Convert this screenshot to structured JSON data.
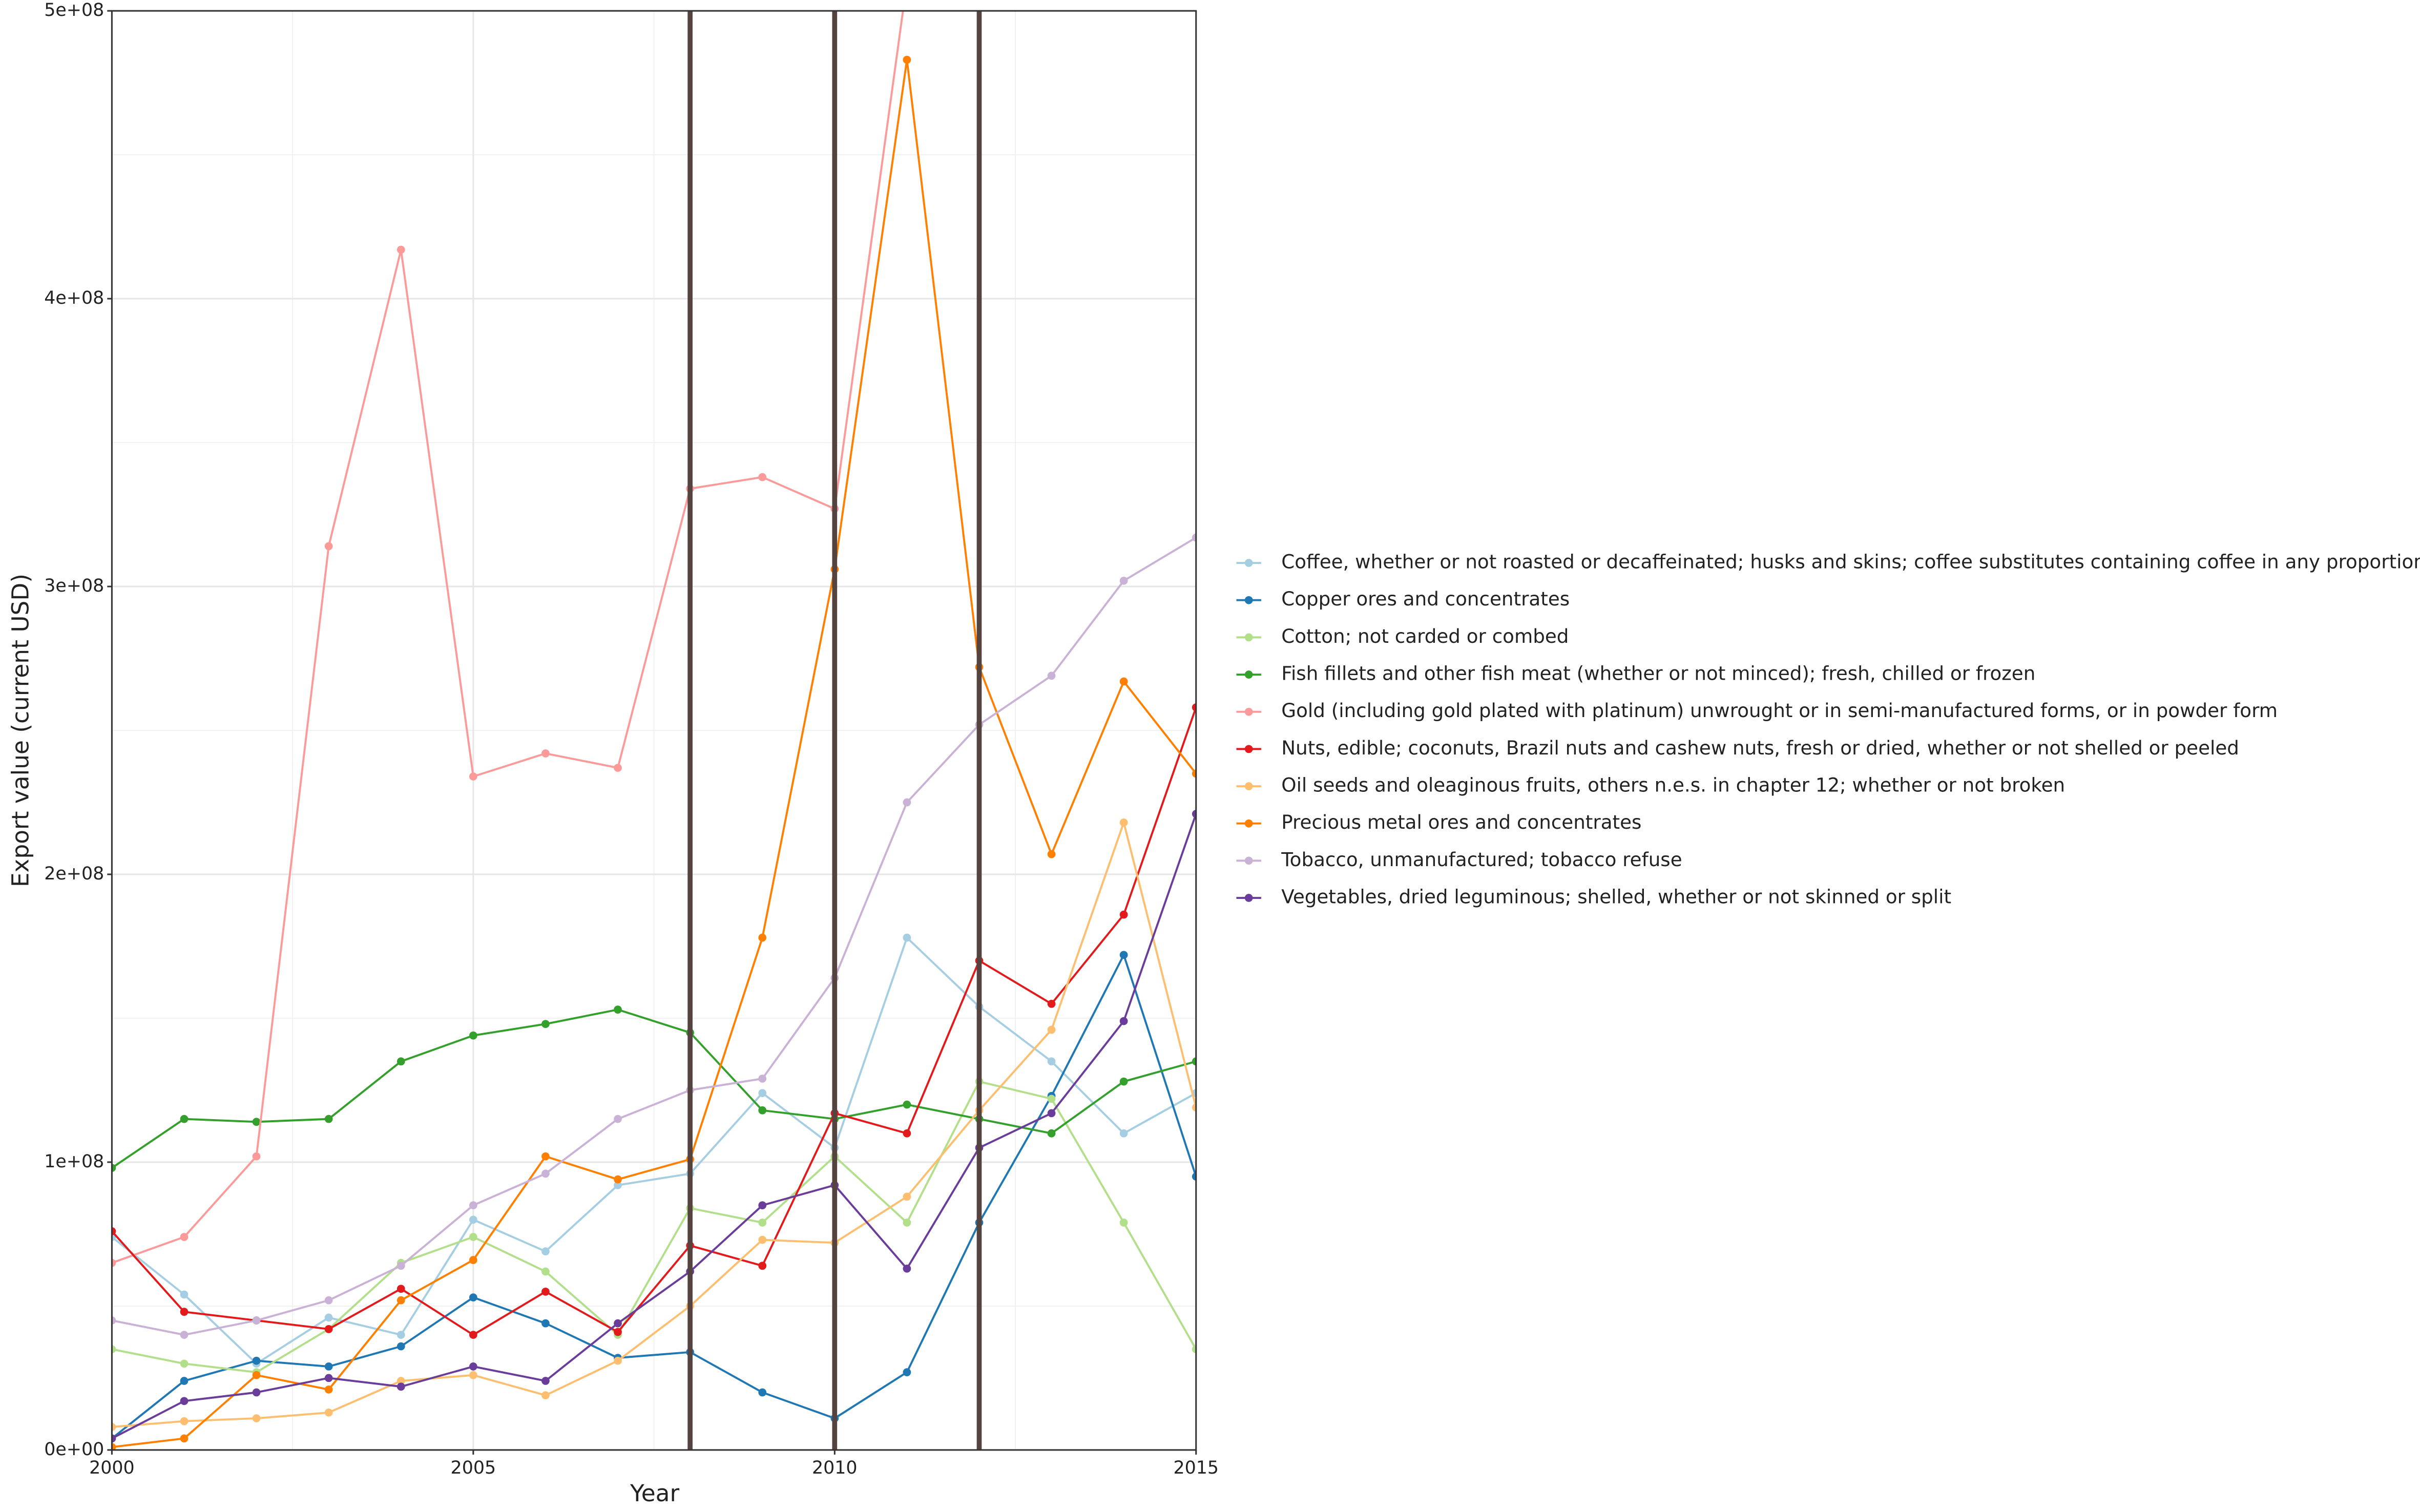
{
  "chart_data": {
    "type": "line",
    "x_label": "Year",
    "y_label": "Export value (current USD)",
    "x": [
      2000,
      2001,
      2002,
      2003,
      2004,
      2005,
      2006,
      2007,
      2008,
      2009,
      2010,
      2011,
      2012,
      2013,
      2014,
      2015
    ],
    "xlim": [
      2000,
      2015
    ],
    "xticks": [
      2000,
      2005,
      2010,
      2015
    ],
    "ylim": [
      0,
      500000000
    ],
    "yticks": [
      {
        "value": 0,
        "label": "0e+00"
      },
      {
        "value": 100000000,
        "label": "1e+08"
      },
      {
        "value": 200000000,
        "label": "2e+08"
      },
      {
        "value": 300000000,
        "label": "3e+08"
      },
      {
        "value": 400000000,
        "label": "4e+08"
      },
      {
        "value": 500000000,
        "label": "5e+08"
      }
    ],
    "grid": true,
    "legend": "right",
    "vlines": [
      2008,
      2010,
      2012
    ],
    "vline_color": "#54433f",
    "series": [
      {
        "name": "Coffee, whether or not roasted or decaffeinated; husks and skins; coffee substitutes containing coffee in any proportion",
        "color": "#a6cee3",
        "values": [
          74000000,
          54000000,
          30000000,
          46000000,
          40000000,
          80000000,
          69000000,
          92000000,
          96000000,
          124000000,
          105000000,
          178000000,
          154000000,
          135000000,
          110000000,
          124000000
        ]
      },
      {
        "name": "Copper ores and concentrates",
        "color": "#1f78b4",
        "values": [
          4000000,
          24000000,
          31000000,
          29000000,
          36000000,
          53000000,
          44000000,
          32000000,
          34000000,
          20000000,
          11000000,
          27000000,
          79000000,
          123000000,
          172000000,
          95000000
        ]
      },
      {
        "name": "Cotton; not carded or combed",
        "color": "#b2df8a",
        "values": [
          35000000,
          30000000,
          27000000,
          42000000,
          65000000,
          74000000,
          62000000,
          40000000,
          84000000,
          79000000,
          102000000,
          79000000,
          128000000,
          122000000,
          79000000,
          35000000
        ]
      },
      {
        "name": "Fish fillets and other fish meat (whether or not minced); fresh, chilled or frozen",
        "color": "#33a02c",
        "values": [
          98000000,
          115000000,
          114000000,
          115000000,
          135000000,
          144000000,
          148000000,
          153000000,
          145000000,
          118000000,
          115000000,
          120000000,
          115000000,
          110000000,
          128000000,
          135000000
        ]
      },
      {
        "name": "Gold (including gold plated with platinum) unwrought or in semi-manufactured forms, or in powder form",
        "color": "#fb9a99",
        "values": [
          65000000,
          74000000,
          102000000,
          314000000,
          417000000,
          234000000,
          242000000,
          237000000,
          334000000,
          338000000,
          327000000,
          510000000,
          null,
          null,
          null,
          null
        ]
      },
      {
        "name": "Nuts, edible; coconuts, Brazil nuts and cashew nuts, fresh or dried, whether or not shelled or peeled",
        "color": "#e31a1c",
        "values": [
          76000000,
          48000000,
          45000000,
          42000000,
          56000000,
          40000000,
          55000000,
          41000000,
          71000000,
          64000000,
          117000000,
          110000000,
          170000000,
          155000000,
          186000000,
          258000000
        ]
      },
      {
        "name": "Oil seeds and oleaginous fruits, others n.e.s. in chapter 12; whether or not broken",
        "color": "#fdbf6f",
        "values": [
          8000000,
          10000000,
          11000000,
          13000000,
          24000000,
          26000000,
          19000000,
          31000000,
          50000000,
          73000000,
          72000000,
          88000000,
          118000000,
          146000000,
          218000000,
          119000000
        ]
      },
      {
        "name": "Precious metal ores and concentrates",
        "color": "#ff7f00",
        "values": [
          1000000,
          4000000,
          26000000,
          21000000,
          52000000,
          66000000,
          102000000,
          94000000,
          101000000,
          178000000,
          306000000,
          483000000,
          272000000,
          207000000,
          267000000,
          235000000
        ]
      },
      {
        "name": "Tobacco, unmanufactured; tobacco refuse",
        "color": "#cab2d6",
        "values": [
          45000000,
          40000000,
          45000000,
          52000000,
          64000000,
          85000000,
          96000000,
          115000000,
          125000000,
          129000000,
          164000000,
          225000000,
          252000000,
          269000000,
          302000000,
          317000000
        ]
      },
      {
        "name": "Vegetables, dried leguminous; shelled, whether or not skinned or split",
        "color": "#6a3d9a",
        "values": [
          4000000,
          17000000,
          20000000,
          25000000,
          22000000,
          29000000,
          24000000,
          44000000,
          62000000,
          85000000,
          92000000,
          63000000,
          105000000,
          117000000,
          149000000,
          221000000
        ]
      }
    ]
  }
}
